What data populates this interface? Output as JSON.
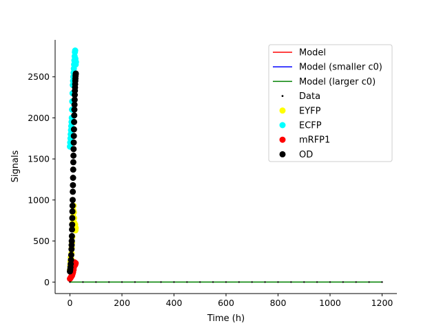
{
  "chart_data": {
    "type": "scatter",
    "title": "",
    "xlabel": "Time (h)",
    "ylabel": "Signals",
    "xlim": [
      -57,
      1257
    ],
    "ylim": [
      -140,
      2950
    ],
    "xticks": [
      0,
      200,
      400,
      600,
      800,
      1000,
      1200
    ],
    "yticks": [
      0,
      500,
      1000,
      1500,
      2000,
      2500
    ],
    "grid": false,
    "legend_position": "top-right",
    "lines": [
      {
        "name": "Model",
        "color": "#ff0000",
        "x": [
          0,
          1200
        ],
        "y": [
          0,
          0
        ]
      },
      {
        "name": "Model (smaller c0)",
        "color": "#0000ff",
        "x": [
          0,
          1200
        ],
        "y": [
          0,
          0
        ]
      },
      {
        "name": "Model (larger c0)",
        "color": "#008000",
        "x": [
          0,
          1200
        ],
        "y": [
          0,
          0
        ]
      }
    ],
    "data_series": {
      "name": "Data",
      "color": "#000000",
      "x": [
        0,
        50,
        100,
        150,
        200,
        250,
        300,
        350,
        400,
        450,
        500,
        550,
        600,
        650,
        700,
        750,
        800,
        850,
        900,
        950,
        1000,
        1050,
        1100,
        1150,
        1200
      ],
      "y": [
        0,
        0,
        0,
        0,
        0,
        0,
        0,
        0,
        0,
        0,
        0,
        0,
        0,
        0,
        0,
        0,
        0,
        0,
        0,
        0,
        0,
        0,
        0,
        0,
        0
      ]
    },
    "series": [
      {
        "name": "EYFP",
        "color": "#ffff00",
        "x": [
          0,
          1,
          2,
          3,
          4,
          5,
          6,
          7,
          8,
          9,
          10,
          11,
          12,
          13,
          14,
          15,
          16,
          17,
          18,
          19,
          20,
          21,
          22
        ],
        "y": [
          150,
          200,
          250,
          300,
          230,
          280,
          350,
          420,
          480,
          550,
          650,
          720,
          800,
          870,
          930,
          850,
          780,
          720,
          680,
          650,
          700,
          630,
          660
        ]
      },
      {
        "name": "ECFP",
        "color": "#00ffff",
        "x": [
          0,
          1,
          2,
          3,
          4,
          5,
          6,
          7,
          8,
          9,
          10,
          11,
          12,
          13,
          14,
          15,
          16,
          17,
          18,
          19,
          20,
          21,
          22,
          23
        ],
        "y": [
          1650,
          1700,
          1750,
          1800,
          1850,
          1900,
          1950,
          2000,
          2100,
          2200,
          2300,
          2400,
          2450,
          2500,
          2550,
          2600,
          2650,
          2700,
          2750,
          2800,
          2820,
          2720,
          2650,
          2680
        ]
      },
      {
        "name": "mRFP1",
        "color": "#ff0000",
        "x": [
          0,
          2,
          4,
          6,
          8,
          10,
          12,
          14,
          15,
          16,
          17,
          18,
          19,
          20,
          21,
          22
        ],
        "y": [
          40,
          50,
          60,
          70,
          80,
          100,
          120,
          150,
          180,
          200,
          220,
          240,
          230,
          210,
          220,
          230
        ]
      },
      {
        "name": "OD",
        "color": "#000000",
        "x": [
          0,
          1,
          2,
          3,
          4,
          5,
          6,
          6.5,
          7,
          7.5,
          8,
          8.5,
          9,
          9.5,
          10,
          10.5,
          11,
          11.5,
          12,
          12.5,
          13,
          13.5,
          14,
          14.5,
          15,
          15.5,
          16,
          16.5,
          17,
          17.5,
          18,
          18.5,
          19,
          19.5,
          20,
          20.5,
          21,
          21.5,
          22,
          22.5
        ],
        "y": [
          130,
          150,
          180,
          220,
          270,
          330,
          400,
          450,
          500,
          560,
          640,
          700,
          780,
          860,
          930,
          1000,
          1100,
          1180,
          1270,
          1370,
          1460,
          1540,
          1620,
          1700,
          1780,
          1860,
          1950,
          2030,
          2100,
          2160,
          2220,
          2280,
          2330,
          2370,
          2410,
          2450,
          2480,
          2510,
          2530,
          2540
        ]
      }
    ],
    "legend": [
      {
        "label": "Model",
        "kind": "line",
        "color": "#ff0000"
      },
      {
        "label": "Model (smaller c0)",
        "kind": "line",
        "color": "#0000ff"
      },
      {
        "label": "Model (larger c0)",
        "kind": "line",
        "color": "#008000"
      },
      {
        "label": "Data",
        "kind": "small-dot",
        "color": "#000000"
      },
      {
        "label": "EYFP",
        "kind": "dot",
        "color": "#ffff00"
      },
      {
        "label": "ECFP",
        "kind": "dot",
        "color": "#00ffff"
      },
      {
        "label": "mRFP1",
        "kind": "dot",
        "color": "#ff0000"
      },
      {
        "label": "OD",
        "kind": "dot",
        "color": "#000000"
      }
    ]
  }
}
